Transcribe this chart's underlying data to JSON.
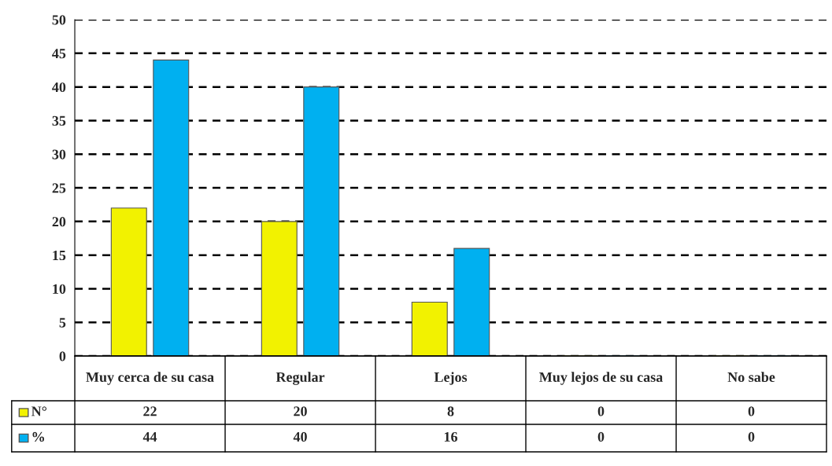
{
  "chart_data": {
    "type": "bar",
    "categories": [
      "Muy cerca de su casa",
      "Regular",
      "Lejos",
      "Muy lejos de su casa",
      "No sabe"
    ],
    "series": [
      {
        "name": "N°",
        "color": "#f2f200",
        "values": [
          22,
          20,
          8,
          0,
          0
        ]
      },
      {
        "name": "%",
        "color": "#00b0f0",
        "values": [
          44,
          40,
          16,
          0,
          0
        ]
      }
    ],
    "ylim": [
      0,
      50
    ],
    "yticks": [
      0,
      5,
      10,
      15,
      20,
      25,
      30,
      35,
      40,
      45,
      50
    ],
    "grid": "y",
    "data_labels": true,
    "legend": "bottom left"
  }
}
